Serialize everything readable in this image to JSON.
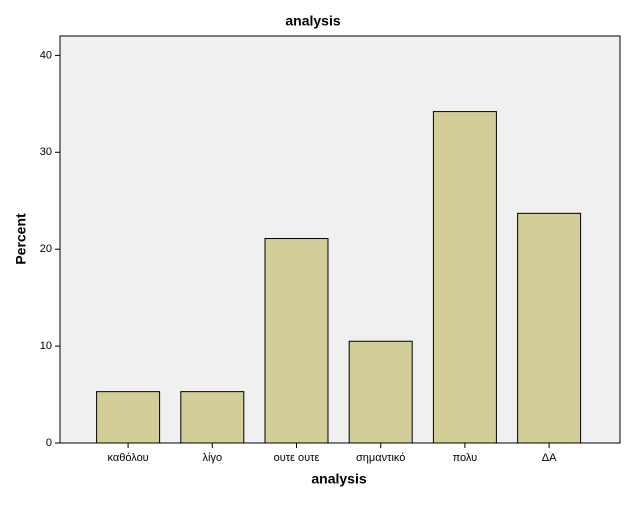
{
  "chart_data": {
    "type": "bar",
    "title": "analysis",
    "x_label": "analysis",
    "y_label": "Percent",
    "categories": [
      "καθόλου",
      "λίγο",
      "ουτε ουτε",
      "σημαντικό",
      "πολυ",
      "ΔΑ"
    ],
    "values": [
      5.3,
      5.3,
      21.1,
      10.5,
      34.2,
      23.7
    ],
    "color": "#d3ce97",
    "ylim": [
      0,
      42
    ],
    "yticks": [
      0,
      10,
      20,
      30,
      40
    ],
    "grid": false
  }
}
